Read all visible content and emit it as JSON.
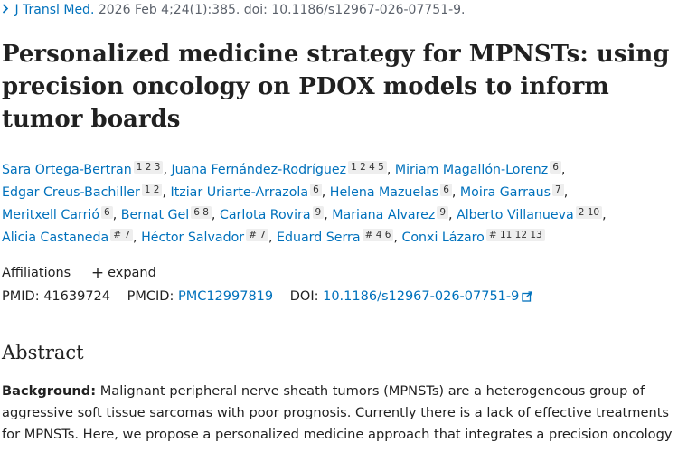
{
  "citation": {
    "journal": "J Transl Med.",
    "details": "2026 Feb 4;24(1):385. doi: 10.1186/s12967-026-07751-9."
  },
  "title": "Personalized medicine strategy for MPNSTs: using precision oncology on PDOX models to inform tumor boards",
  "authors": [
    {
      "name": "Sara Ortega-Bertran",
      "aff": "1 2 3"
    },
    {
      "name": "Juana Fernández-Rodríguez",
      "aff": "1 2 4 5"
    },
    {
      "name": "Miriam Magallón-Lorenz",
      "aff": "6"
    },
    {
      "name": "Edgar Creus-Bachiller",
      "aff": "1 2"
    },
    {
      "name": "Itziar Uriarte-Arrazola",
      "aff": "6"
    },
    {
      "name": "Helena Mazuelas",
      "aff": "6"
    },
    {
      "name": "Moira Garraus",
      "aff": "7"
    },
    {
      "name": "Meritxell Carrió",
      "aff": "6"
    },
    {
      "name": "Bernat Gel",
      "aff": "6 8"
    },
    {
      "name": "Carlota Rovira",
      "aff": "9"
    },
    {
      "name": "Mariana Alvarez",
      "aff": "9"
    },
    {
      "name": "Alberto Villanueva",
      "aff": "2 10"
    },
    {
      "name": "Alicia Castaneda",
      "aff": "# 7"
    },
    {
      "name": "Héctor Salvador",
      "aff": "# 7"
    },
    {
      "name": "Eduard Serra",
      "aff": "# 4 6"
    },
    {
      "name": "Conxi Lázaro",
      "aff": "# 11 12 13"
    }
  ],
  "affiliations": {
    "label": "Affiliations",
    "expand_label": "expand"
  },
  "ids": {
    "pmid_label": "PMID:",
    "pmid": "41639724",
    "pmcid_label": "PMCID:",
    "pmcid": "PMC12997819",
    "doi_label": "DOI:",
    "doi": "10.1186/s12967-026-07751-9"
  },
  "abstract": {
    "heading": "Abstract",
    "background_label": "Background:",
    "background_text": "Malignant peripheral nerve sheath tumors (MPNSTs) are a heterogeneous group of aggressive soft tissue sarcomas with poor prognosis. Currently there is a lack of effective treatments for MPNSTs. Here, we propose a personalized medicine approach that integrates a precision oncology"
  }
}
